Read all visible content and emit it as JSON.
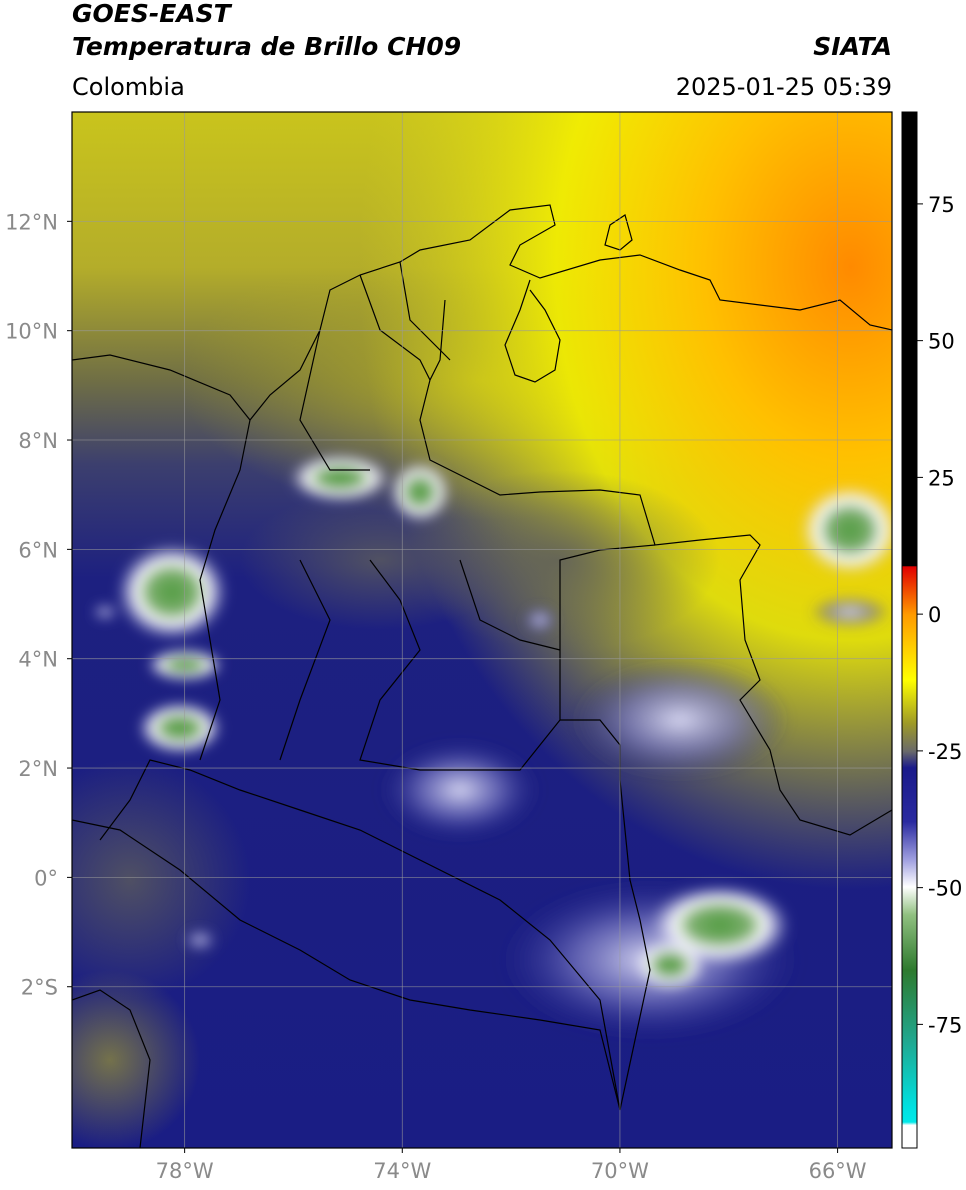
{
  "header": {
    "satellite": "GOES-EAST",
    "product": "Temperatura de Brillo CH09",
    "region": "Colombia",
    "source": "SIATA",
    "datetime": "2025-01-25 05:39"
  },
  "map": {
    "xlim": [
      -80.07,
      -65.0
    ],
    "ylim": [
      -4.95,
      14.0
    ],
    "xticks": [
      {
        "value": -78,
        "label": "78°W"
      },
      {
        "value": -74,
        "label": "74°W"
      },
      {
        "value": -70,
        "label": "70°W"
      },
      {
        "value": -66,
        "label": "66°W"
      }
    ],
    "yticks": [
      {
        "value": 12,
        "label": "12°N"
      },
      {
        "value": 10,
        "label": "10°N"
      },
      {
        "value": 8,
        "label": "8°N"
      },
      {
        "value": 6,
        "label": "6°N"
      },
      {
        "value": 4,
        "label": "4°N"
      },
      {
        "value": 2,
        "label": "2°N"
      },
      {
        "value": 0,
        "label": "0°"
      },
      {
        "value": -2,
        "label": "2°S"
      }
    ],
    "grid": true
  },
  "colorbar": {
    "lim": [
      -97.6,
      91.8
    ],
    "ticks": [
      75,
      50,
      25,
      0,
      -25,
      -50,
      -75
    ]
  }
}
